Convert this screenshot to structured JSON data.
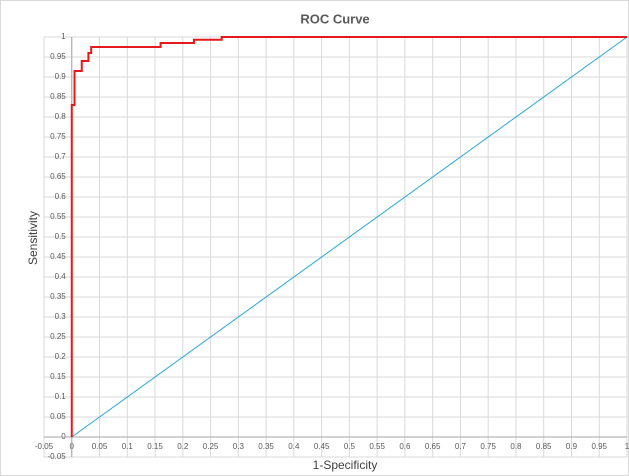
{
  "chart_data": {
    "type": "line",
    "title": "ROC Curve",
    "xlabel": "1-Specificity",
    "ylabel": "Sensitivity",
    "xlim": [
      -0.05,
      1
    ],
    "ylim": [
      -0.05,
      1
    ],
    "xticks": [
      -0.05,
      0,
      0.05,
      0.1,
      0.15,
      0.2,
      0.25,
      0.3,
      0.35,
      0.4,
      0.45,
      0.5,
      0.55,
      0.6,
      0.65,
      0.7,
      0.75,
      0.8,
      0.85,
      0.9,
      0.95,
      1
    ],
    "yticks": [
      -0.05,
      0,
      0.05,
      0.1,
      0.15,
      0.2,
      0.25,
      0.3,
      0.35,
      0.4,
      0.45,
      0.5,
      0.55,
      0.6,
      0.65,
      0.7,
      0.75,
      0.8,
      0.85,
      0.9,
      0.95,
      1
    ],
    "grid": true,
    "series": [
      {
        "color": "#e31a1c",
        "x": [
          0,
          0,
          0.005,
          0.005,
          0.018,
          0.018,
          0.03,
          0.03,
          0.035,
          0.035,
          0.16,
          0.16,
          0.22,
          0.22,
          0.27,
          0.27,
          1
        ],
        "values": [
          0,
          0.83,
          0.83,
          0.915,
          0.915,
          0.94,
          0.94,
          0.96,
          0.96,
          0.975,
          0.975,
          0.985,
          0.985,
          0.993,
          0.993,
          1,
          1
        ]
      },
      {
        "color": "#2aa9d8",
        "x": [
          0,
          1
        ],
        "values": [
          0,
          1
        ]
      }
    ]
  }
}
